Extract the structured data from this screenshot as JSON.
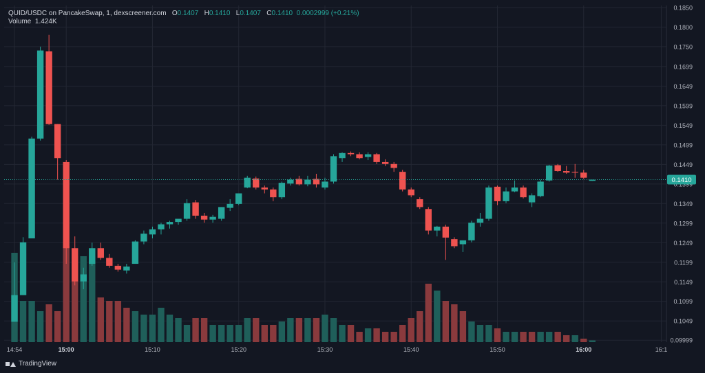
{
  "legend": {
    "symbol": "QUID/USDC on PancakeSwap, 1, dexscreener.com",
    "o_label": "O",
    "o_value": "0.1407",
    "h_label": "H",
    "h_value": "0.1410",
    "l_label": "L",
    "l_value": "0.1407",
    "c_label": "C",
    "c_value": "0.1410",
    "change": "0.0002999 (+0.21%)",
    "volume_label": "Volume",
    "volume_value": "1.424K"
  },
  "footer": {
    "brand": "TradingView"
  },
  "colors": {
    "background": "#131722",
    "grid": "#232733",
    "up": "#26a69a",
    "down": "#ef5350",
    "vol_up": "#1f5f5a",
    "vol_down": "#8a3a3d",
    "text": "#b2b5be",
    "label_bg": "#26a69a"
  },
  "chart_data": {
    "type": "candlestick",
    "title": "QUID/USDC on PancakeSwap, 1, dexscreener.com",
    "y_ticks": [
      "0.1850",
      "0.1800",
      "0.1750",
      "0.1699",
      "0.1649",
      "0.1599",
      "0.1549",
      "0.1499",
      "0.1449",
      "0.1399",
      "0.1349",
      "0.1299",
      "0.1249",
      "0.1199",
      "0.1149",
      "0.1099",
      "0.1049",
      "0.09999"
    ],
    "ylim": [
      0.0995,
      0.1855
    ],
    "x_ticks": [
      {
        "label": "14:54",
        "t": 0,
        "bold": false
      },
      {
        "label": "15:00",
        "t": 6,
        "bold": true
      },
      {
        "label": "15:10",
        "t": 16,
        "bold": false
      },
      {
        "label": "15:20",
        "t": 26,
        "bold": false
      },
      {
        "label": "15:30",
        "t": 36,
        "bold": false
      },
      {
        "label": "15:40",
        "t": 46,
        "bold": false
      },
      {
        "label": "15:50",
        "t": 56,
        "bold": false
      },
      {
        "label": "16:00",
        "t": 66,
        "bold": true
      },
      {
        "label": "16:1",
        "t": 75,
        "bold": false
      }
    ],
    "xlim": [
      -1.2,
      75.6
    ],
    "last_price": "0.1410",
    "last_price_value": 0.141,
    "candles": [
      {
        "o": 0.1047,
        "h": 0.1199,
        "l": 0.1047,
        "c": 0.1115
      },
      {
        "o": 0.1115,
        "h": 0.1263,
        "l": 0.1115,
        "c": 0.125
      },
      {
        "o": 0.126,
        "h": 0.152,
        "l": 0.126,
        "c": 0.1515
      },
      {
        "o": 0.1515,
        "h": 0.175,
        "l": 0.151,
        "c": 0.174
      },
      {
        "o": 0.1738,
        "h": 0.178,
        "l": 0.155,
        "c": 0.1552
      },
      {
        "o": 0.1552,
        "h": 0.1552,
        "l": 0.141,
        "c": 0.1465
      },
      {
        "o": 0.1455,
        "h": 0.146,
        "l": 0.1195,
        "c": 0.1235
      },
      {
        "o": 0.1235,
        "h": 0.1265,
        "l": 0.114,
        "c": 0.115
      },
      {
        "o": 0.115,
        "h": 0.1185,
        "l": 0.113,
        "c": 0.1168
      },
      {
        "o": 0.1195,
        "h": 0.1249,
        "l": 0.119,
        "c": 0.1235
      },
      {
        "o": 0.1235,
        "h": 0.1249,
        "l": 0.1205,
        "c": 0.121
      },
      {
        "o": 0.121,
        "h": 0.122,
        "l": 0.1185,
        "c": 0.119
      },
      {
        "o": 0.119,
        "h": 0.1195,
        "l": 0.1175,
        "c": 0.118
      },
      {
        "o": 0.1178,
        "h": 0.1195,
        "l": 0.117,
        "c": 0.1188
      },
      {
        "o": 0.1195,
        "h": 0.1255,
        "l": 0.1195,
        "c": 0.1252
      },
      {
        "o": 0.1252,
        "h": 0.128,
        "l": 0.1245,
        "c": 0.1272
      },
      {
        "o": 0.127,
        "h": 0.129,
        "l": 0.126,
        "c": 0.1283
      },
      {
        "o": 0.1283,
        "h": 0.13,
        "l": 0.127,
        "c": 0.1296
      },
      {
        "o": 0.1296,
        "h": 0.1305,
        "l": 0.1285,
        "c": 0.1302
      },
      {
        "o": 0.1302,
        "h": 0.131,
        "l": 0.1295,
        "c": 0.131
      },
      {
        "o": 0.131,
        "h": 0.136,
        "l": 0.1305,
        "c": 0.135
      },
      {
        "o": 0.1352,
        "h": 0.1358,
        "l": 0.131,
        "c": 0.1318
      },
      {
        "o": 0.1318,
        "h": 0.1325,
        "l": 0.13,
        "c": 0.1308
      },
      {
        "o": 0.1308,
        "h": 0.132,
        "l": 0.13,
        "c": 0.1315
      },
      {
        "o": 0.131,
        "h": 0.134,
        "l": 0.1305,
        "c": 0.134
      },
      {
        "o": 0.1338,
        "h": 0.136,
        "l": 0.133,
        "c": 0.1348
      },
      {
        "o": 0.1348,
        "h": 0.1375,
        "l": 0.1345,
        "c": 0.1375
      },
      {
        "o": 0.139,
        "h": 0.142,
        "l": 0.1388,
        "c": 0.1415
      },
      {
        "o": 0.1413,
        "h": 0.1418,
        "l": 0.1385,
        "c": 0.139
      },
      {
        "o": 0.139,
        "h": 0.1395,
        "l": 0.1375,
        "c": 0.1385
      },
      {
        "o": 0.1385,
        "h": 0.139,
        "l": 0.1355,
        "c": 0.1365
      },
      {
        "o": 0.1365,
        "h": 0.1405,
        "l": 0.136,
        "c": 0.1402
      },
      {
        "o": 0.14,
        "h": 0.1415,
        "l": 0.1395,
        "c": 0.141
      },
      {
        "o": 0.1412,
        "h": 0.142,
        "l": 0.1395,
        "c": 0.1398
      },
      {
        "o": 0.1398,
        "h": 0.142,
        "l": 0.1393,
        "c": 0.141
      },
      {
        "o": 0.1412,
        "h": 0.1425,
        "l": 0.139,
        "c": 0.1398
      },
      {
        "o": 0.139,
        "h": 0.1415,
        "l": 0.1385,
        "c": 0.1405
      },
      {
        "o": 0.1405,
        "h": 0.1475,
        "l": 0.14,
        "c": 0.147
      },
      {
        "o": 0.1465,
        "h": 0.148,
        "l": 0.1455,
        "c": 0.1478
      },
      {
        "o": 0.1478,
        "h": 0.1482,
        "l": 0.147,
        "c": 0.1475
      },
      {
        "o": 0.1475,
        "h": 0.148,
        "l": 0.1462,
        "c": 0.1465
      },
      {
        "o": 0.1468,
        "h": 0.148,
        "l": 0.146,
        "c": 0.1475
      },
      {
        "o": 0.1475,
        "h": 0.1478,
        "l": 0.145,
        "c": 0.1455
      },
      {
        "o": 0.1455,
        "h": 0.1462,
        "l": 0.1445,
        "c": 0.145
      },
      {
        "o": 0.145,
        "h": 0.1455,
        "l": 0.143,
        "c": 0.144
      },
      {
        "o": 0.143,
        "h": 0.1435,
        "l": 0.138,
        "c": 0.1385
      },
      {
        "o": 0.1385,
        "h": 0.139,
        "l": 0.1365,
        "c": 0.137
      },
      {
        "o": 0.136,
        "h": 0.1365,
        "l": 0.1335,
        "c": 0.134
      },
      {
        "o": 0.1335,
        "h": 0.134,
        "l": 0.127,
        "c": 0.128
      },
      {
        "o": 0.128,
        "h": 0.1292,
        "l": 0.1265,
        "c": 0.129
      },
      {
        "o": 0.129,
        "h": 0.1295,
        "l": 0.1205,
        "c": 0.1262
      },
      {
        "o": 0.1258,
        "h": 0.1263,
        "l": 0.1235,
        "c": 0.124
      },
      {
        "o": 0.1245,
        "h": 0.1255,
        "l": 0.1225,
        "c": 0.1255
      },
      {
        "o": 0.1255,
        "h": 0.1305,
        "l": 0.125,
        "c": 0.13
      },
      {
        "o": 0.13,
        "h": 0.1325,
        "l": 0.129,
        "c": 0.131
      },
      {
        "o": 0.131,
        "h": 0.1395,
        "l": 0.1305,
        "c": 0.139
      },
      {
        "o": 0.1392,
        "h": 0.1395,
        "l": 0.1345,
        "c": 0.1355
      },
      {
        "o": 0.1355,
        "h": 0.139,
        "l": 0.135,
        "c": 0.138
      },
      {
        "o": 0.138,
        "h": 0.1408,
        "l": 0.1378,
        "c": 0.139
      },
      {
        "o": 0.139,
        "h": 0.1395,
        "l": 0.1362,
        "c": 0.1365
      },
      {
        "o": 0.1352,
        "h": 0.1375,
        "l": 0.134,
        "c": 0.137
      },
      {
        "o": 0.1368,
        "h": 0.141,
        "l": 0.1365,
        "c": 0.1405
      },
      {
        "o": 0.1408,
        "h": 0.1448,
        "l": 0.1405,
        "c": 0.1446
      },
      {
        "o": 0.1447,
        "h": 0.145,
        "l": 0.143,
        "c": 0.1432
      },
      {
        "o": 0.1432,
        "h": 0.1445,
        "l": 0.1425,
        "c": 0.1428
      },
      {
        "o": 0.143,
        "h": 0.145,
        "l": 0.1415,
        "c": 0.1428
      },
      {
        "o": 0.1428,
        "h": 0.1435,
        "l": 0.1412,
        "c": 0.1415
      },
      {
        "o": 0.1407,
        "h": 0.141,
        "l": 0.1407,
        "c": 0.141
      }
    ],
    "volume": [
      {
        "v": 0.26,
        "up": true
      },
      {
        "v": 0.12,
        "up": true
      },
      {
        "v": 0.12,
        "up": true
      },
      {
        "v": 0.09,
        "up": true
      },
      {
        "v": 0.11,
        "up": false
      },
      {
        "v": 0.09,
        "up": false
      },
      {
        "v": 0.28,
        "up": false
      },
      {
        "v": 0.25,
        "up": false
      },
      {
        "v": 0.25,
        "up": true
      },
      {
        "v": 0.25,
        "up": true
      },
      {
        "v": 0.13,
        "up": false
      },
      {
        "v": 0.12,
        "up": false
      },
      {
        "v": 0.12,
        "up": false
      },
      {
        "v": 0.1,
        "up": false
      },
      {
        "v": 0.09,
        "up": true
      },
      {
        "v": 0.08,
        "up": true
      },
      {
        "v": 0.08,
        "up": true
      },
      {
        "v": 0.1,
        "up": true
      },
      {
        "v": 0.08,
        "up": true
      },
      {
        "v": 0.07,
        "up": true
      },
      {
        "v": 0.05,
        "up": true
      },
      {
        "v": 0.07,
        "up": false
      },
      {
        "v": 0.07,
        "up": false
      },
      {
        "v": 0.05,
        "up": true
      },
      {
        "v": 0.05,
        "up": true
      },
      {
        "v": 0.05,
        "up": true
      },
      {
        "v": 0.05,
        "up": true
      },
      {
        "v": 0.07,
        "up": true
      },
      {
        "v": 0.07,
        "up": false
      },
      {
        "v": 0.05,
        "up": false
      },
      {
        "v": 0.05,
        "up": false
      },
      {
        "v": 0.06,
        "up": true
      },
      {
        "v": 0.07,
        "up": true
      },
      {
        "v": 0.07,
        "up": false
      },
      {
        "v": 0.07,
        "up": true
      },
      {
        "v": 0.07,
        "up": false
      },
      {
        "v": 0.08,
        "up": true
      },
      {
        "v": 0.07,
        "up": true
      },
      {
        "v": 0.05,
        "up": true
      },
      {
        "v": 0.05,
        "up": false
      },
      {
        "v": 0.03,
        "up": false
      },
      {
        "v": 0.04,
        "up": true
      },
      {
        "v": 0.04,
        "up": false
      },
      {
        "v": 0.03,
        "up": false
      },
      {
        "v": 0.03,
        "up": false
      },
      {
        "v": 0.05,
        "up": false
      },
      {
        "v": 0.07,
        "up": false
      },
      {
        "v": 0.09,
        "up": false
      },
      {
        "v": 0.17,
        "up": false
      },
      {
        "v": 0.15,
        "up": true
      },
      {
        "v": 0.12,
        "up": false
      },
      {
        "v": 0.11,
        "up": false
      },
      {
        "v": 0.09,
        "up": false
      },
      {
        "v": 0.06,
        "up": true
      },
      {
        "v": 0.05,
        "up": true
      },
      {
        "v": 0.05,
        "up": true
      },
      {
        "v": 0.04,
        "up": false
      },
      {
        "v": 0.03,
        "up": true
      },
      {
        "v": 0.03,
        "up": true
      },
      {
        "v": 0.03,
        "up": false
      },
      {
        "v": 0.03,
        "up": false
      },
      {
        "v": 0.03,
        "up": true
      },
      {
        "v": 0.03,
        "up": true
      },
      {
        "v": 0.03,
        "up": false
      },
      {
        "v": 0.02,
        "up": false
      },
      {
        "v": 0.02,
        "up": true
      },
      {
        "v": 0.01,
        "up": false
      },
      {
        "v": 0.005,
        "up": true
      }
    ]
  }
}
